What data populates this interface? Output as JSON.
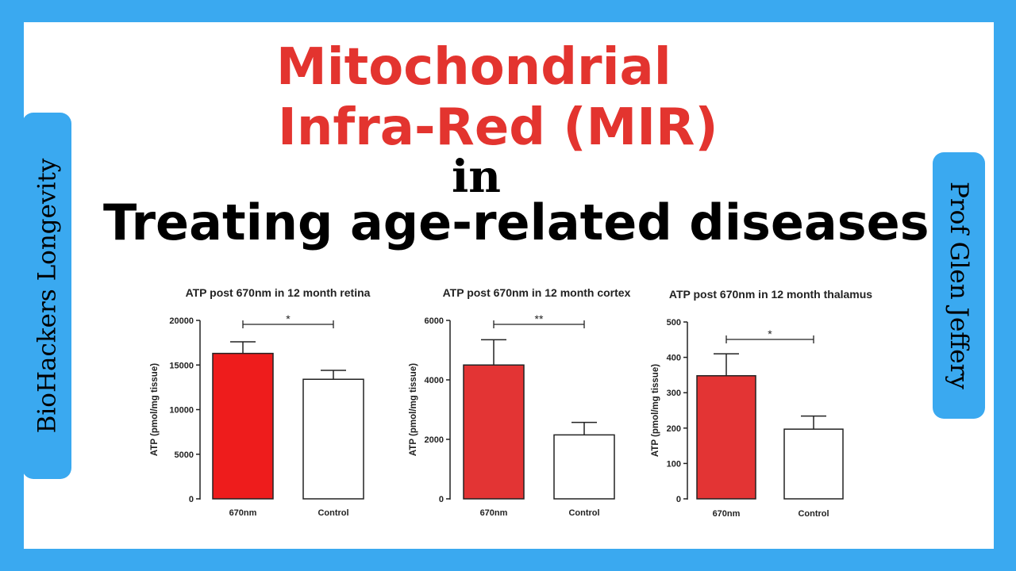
{
  "headline": {
    "line1": "Mitochondrial",
    "line2": "Infra-Red (MIR)",
    "line3": "in",
    "line4": "Treating age-related diseases"
  },
  "side_left": "BioHackers Longevity",
  "side_right": "Prof Glen Jeffery",
  "colors": {
    "background": "#3aa9f0",
    "title_red": "#e3342f",
    "bar_red": "#ee1c1c",
    "bar_white": "#ffffff"
  },
  "chart_data": [
    {
      "type": "bar",
      "title": "ATP post 670nm in 12 month retina",
      "ylabel": "ATP (pmol/mg tissue)",
      "categories": [
        "670nm",
        "Control"
      ],
      "values": [
        16300,
        13400
      ],
      "errors": [
        1300,
        1000
      ],
      "bar_colors": [
        "#ee1c1c",
        "#ffffff"
      ],
      "ylim": [
        0,
        20000
      ],
      "yticks": [
        0,
        5000,
        10000,
        15000,
        20000
      ],
      "significance": "*"
    },
    {
      "type": "bar",
      "title": "ATP post 670nm in 12 month cortex",
      "ylabel": "ATP (pmol/mg tissue)",
      "categories": [
        "670nm",
        "Control"
      ],
      "values": [
        4500,
        2150
      ],
      "errors": [
        850,
        420
      ],
      "bar_colors": [
        "#e33434",
        "#ffffff"
      ],
      "ylim": [
        0,
        6000
      ],
      "yticks": [
        0,
        2000,
        4000,
        6000
      ],
      "significance": "**"
    },
    {
      "type": "bar",
      "title": "ATP post 670nm in 12 month thalamus",
      "ylabel": "ATP (pmol/mg tissue)",
      "categories": [
        "670nm",
        "Control"
      ],
      "values": [
        348,
        197
      ],
      "errors": [
        62,
        37
      ],
      "bar_colors": [
        "#e33434",
        "#ffffff"
      ],
      "ylim": [
        0,
        500
      ],
      "yticks": [
        0,
        100,
        200,
        300,
        400,
        500
      ],
      "significance": "*"
    }
  ]
}
